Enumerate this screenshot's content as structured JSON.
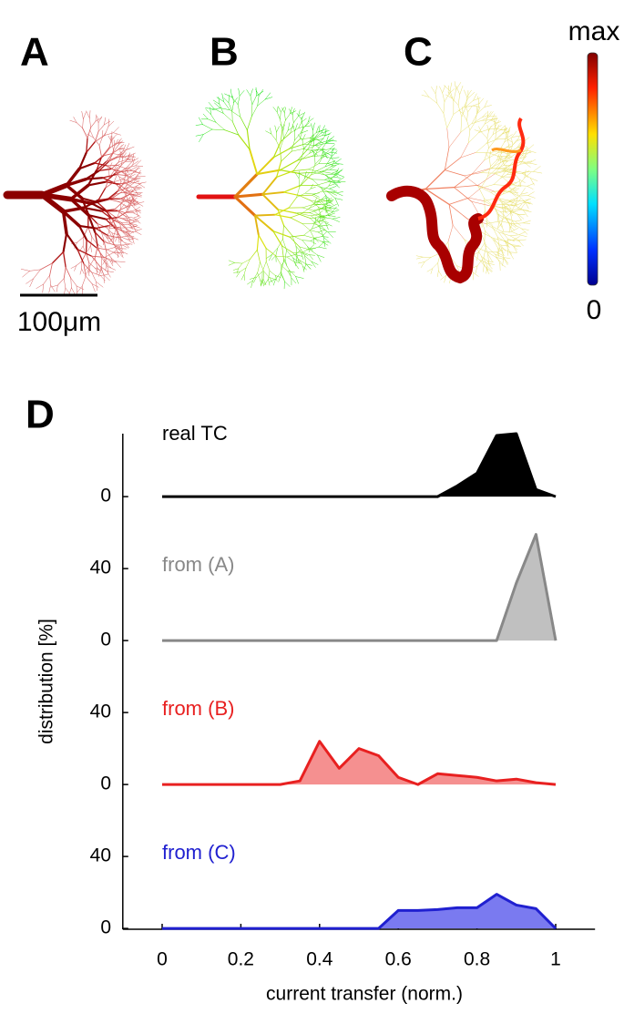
{
  "panels": {
    "labels": [
      "A",
      "B",
      "C",
      "D"
    ],
    "colorbar_max": "max",
    "colorbar_min": "0",
    "scale_bar": "100μm"
  },
  "chart_data": {
    "type": "ridgeline",
    "xlabel": "current transfer (norm.)",
    "ylabel": "distribution [%]",
    "x": [
      0,
      0.05,
      0.1,
      0.15,
      0.2,
      0.25,
      0.3,
      0.35,
      0.4,
      0.45,
      0.5,
      0.55,
      0.6,
      0.65,
      0.7,
      0.75,
      0.8,
      0.85,
      0.9,
      0.95,
      1
    ],
    "xlim": [
      -0.1,
      1.1
    ],
    "xticks": [
      0,
      0.2,
      0.4,
      0.6,
      0.8,
      1
    ],
    "series": [
      {
        "name": "real TC",
        "color": "#000000",
        "fill": "#000000",
        "ylim": [
          0,
          35
        ],
        "yticks": [
          0
        ],
        "values": [
          0,
          0,
          0,
          0,
          0,
          0,
          0,
          0,
          0,
          0,
          0,
          0,
          0,
          0,
          0,
          6,
          13,
          34,
          35,
          4,
          0
        ]
      },
      {
        "name": "from (A)",
        "color": "#888888",
        "fill": "#c0c0c0",
        "ylim": [
          0,
          80
        ],
        "yticks": [
          0,
          40
        ],
        "values": [
          0,
          0,
          0,
          0,
          0,
          0,
          0,
          0,
          0,
          0,
          0,
          0,
          0,
          0,
          0,
          0,
          0,
          0,
          32,
          59,
          0
        ]
      },
      {
        "name": "from (B)",
        "color": "#e82020",
        "fill": "#f59090",
        "ylim": [
          0,
          80
        ],
        "yticks": [
          0,
          40
        ],
        "values": [
          0,
          0,
          0,
          0,
          0,
          0,
          0,
          2,
          24,
          9,
          20,
          16,
          4,
          0,
          6,
          5,
          4,
          2,
          3,
          1,
          0
        ]
      },
      {
        "name": "from (C)",
        "color": "#2020d0",
        "fill": "#7a7af0",
        "ylim": [
          0,
          80
        ],
        "yticks": [
          0,
          40
        ],
        "values": [
          0,
          0,
          0,
          0,
          0,
          0,
          0,
          0,
          0,
          0,
          0,
          0,
          10,
          10,
          10.5,
          11.5,
          11.5,
          19,
          13,
          11,
          0
        ]
      }
    ]
  }
}
